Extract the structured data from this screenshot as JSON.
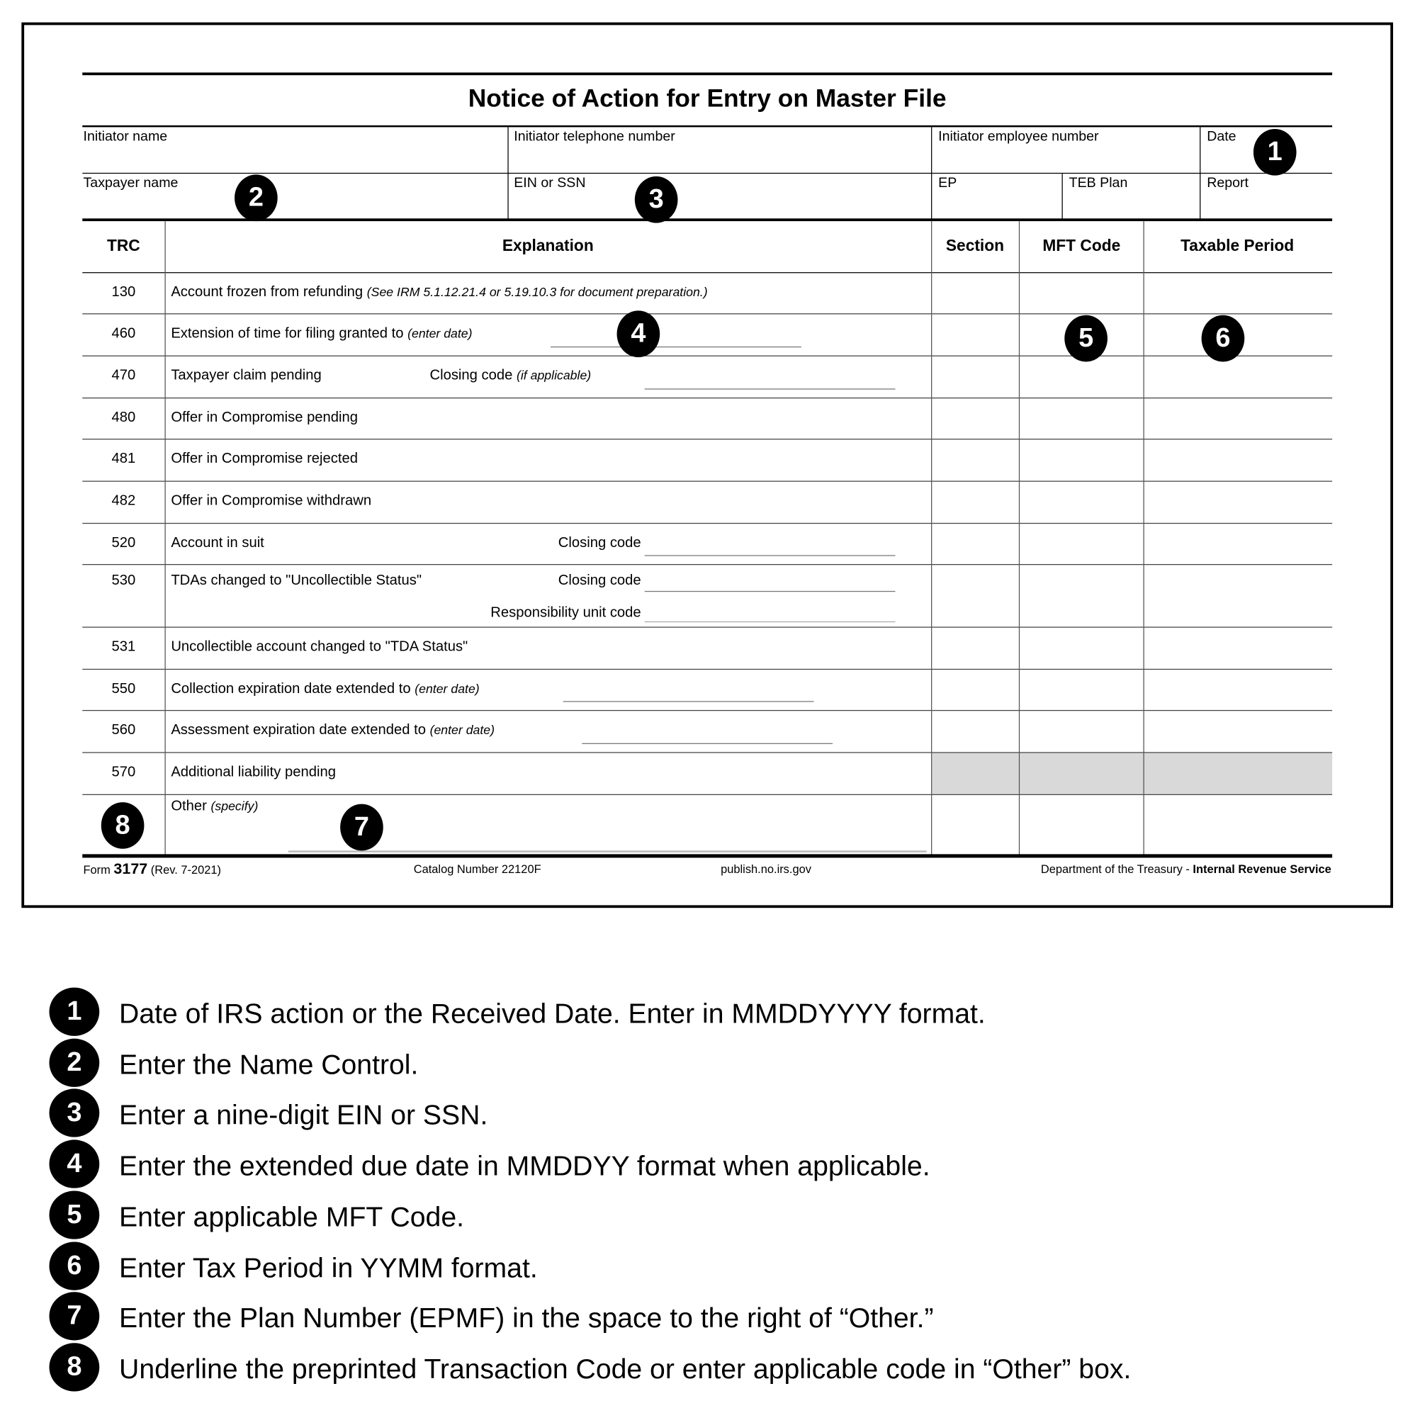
{
  "form": {
    "title": "Notice of Action for Entry on Master File",
    "fields_row1": [
      "Initiator name",
      "Initiator telephone number",
      "Initiator employee number",
      "Date"
    ],
    "fields_row2": [
      "Taxpayer name",
      "EIN or SSN",
      "EP",
      "TEB Plan",
      "Report"
    ],
    "columns": [
      "TRC",
      "Explanation",
      "Section",
      "MFT Code",
      "Taxable Period"
    ],
    "rows": [
      {
        "trc": "130",
        "text": "Account frozen from refunding",
        "note": "(See IRM 5.1.12.21.4 or 5.19.10.3 for document preparation.)"
      },
      {
        "trc": "460",
        "text": "Extension of time for filing granted to",
        "note": "(enter date)"
      },
      {
        "trc": "470",
        "text": "Taxpayer claim pending",
        "field_label": "Closing code",
        "field_note": "(if applicable)"
      },
      {
        "trc": "480",
        "text": "Offer in Compromise pending"
      },
      {
        "trc": "481",
        "text": "Offer in Compromise rejected"
      },
      {
        "trc": "482",
        "text": "Offer in Compromise withdrawn"
      },
      {
        "trc": "520",
        "text": "Account in suit",
        "field_label": "Closing code"
      },
      {
        "trc": "530",
        "text": "TDAs changed to \"Uncollectible Status\"",
        "field_label": "Closing code",
        "field_label2": "Responsibility unit code"
      },
      {
        "trc": "531",
        "text": "Uncollectible account changed to \"TDA Status\""
      },
      {
        "trc": "550",
        "text": "Collection expiration date extended to",
        "note": "(enter date)"
      },
      {
        "trc": "560",
        "text": "Assessment expiration date extended to",
        "note": "(enter date)"
      },
      {
        "trc": "570",
        "text": "Additional liability pending",
        "shaded": true
      },
      {
        "trc": "",
        "text": "Other",
        "note": "(specify)"
      }
    ],
    "footer": {
      "form_prefix": "Form",
      "form_number": "3177",
      "revision": "(Rev. 7-2021)",
      "catalog": "Catalog Number 22120F",
      "site": "publish.no.irs.gov",
      "dept": "Department of the Treasury - ",
      "agency": "Internal Revenue Service"
    },
    "shade_color": "#d9d9d9"
  },
  "callouts": [
    "1",
    "2",
    "3",
    "4",
    "5",
    "6",
    "7",
    "8"
  ],
  "legend": [
    {
      "num": "1",
      "text": "Date of IRS action or the Received Date. Enter in MMDDYYYY format."
    },
    {
      "num": "2",
      "text": "Enter the Name Control."
    },
    {
      "num": "3",
      "text": "Enter a nine-digit EIN or SSN."
    },
    {
      "num": "4",
      "text": "Enter the extended due date in MMDDYY format when applicable."
    },
    {
      "num": "5",
      "text": "Enter applicable MFT Code."
    },
    {
      "num": "6",
      "text": "Enter Tax Period in YYMM format."
    },
    {
      "num": "7",
      "text": "Enter the Plan Number (EPMF) in the space to the right of “Other.”"
    },
    {
      "num": "8",
      "text": "Underline the preprinted Transaction Code or enter applicable code in “Other” box."
    }
  ]
}
